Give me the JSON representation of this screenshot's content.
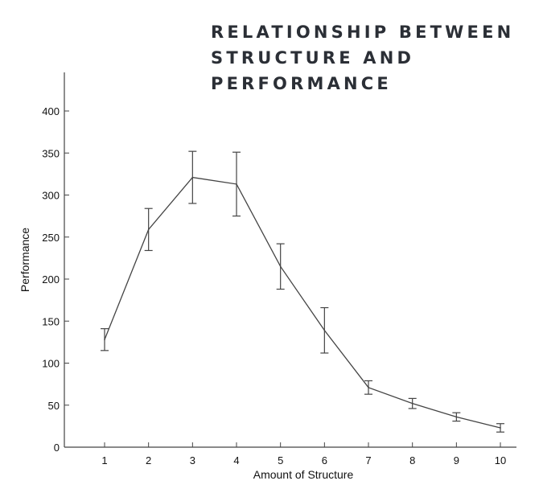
{
  "chart_data": {
    "type": "line",
    "title_lines": [
      "RELATIONSHIP BETWEEN",
      "STRUCTURE AND",
      "PERFORMANCE"
    ],
    "xlabel": "Amount of Structure",
    "ylabel": "Performance",
    "x": [
      1,
      2,
      3,
      4,
      5,
      6,
      7,
      8,
      9,
      10
    ],
    "y": [
      128,
      259,
      321,
      313,
      215,
      139,
      71,
      52,
      36,
      23
    ],
    "error": [
      13,
      25,
      31,
      38,
      27,
      27,
      8,
      6,
      5,
      5
    ],
    "xticks": [
      "1",
      "2",
      "3",
      "4",
      "5",
      "6",
      "7",
      "8",
      "9",
      "10"
    ],
    "yticks": [
      "0",
      "50",
      "100",
      "150",
      "200",
      "250",
      "300",
      "350",
      "400"
    ],
    "xlim": [
      0,
      10.35
    ],
    "ylim": [
      0,
      400
    ],
    "grid": false,
    "error_bars": true,
    "line_color": "#444444"
  }
}
